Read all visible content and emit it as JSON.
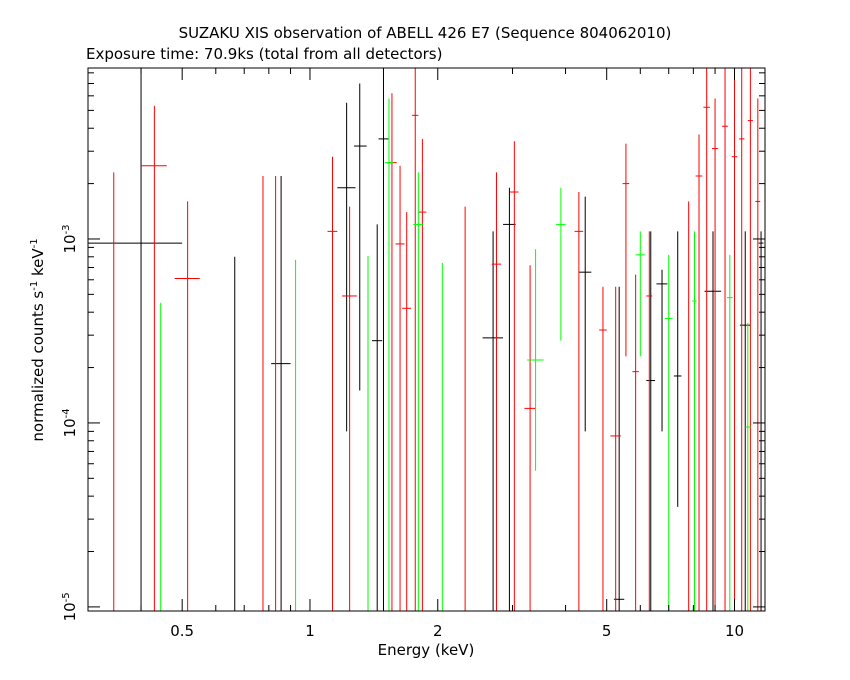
{
  "chart_data": {
    "type": "scatter",
    "title": "SUZAKU XIS observation of ABELL 426 E7 (Sequence 804062010)",
    "subtitle": "Exposure time: 70.9ks (total from all detectors)",
    "xlabel": "Energy (keV)",
    "ylabel_main": "normalized counts s",
    "ylabel_sup1": "-1",
    "ylabel_mid": " keV",
    "ylabel_sup2": "-1",
    "xscale": "log",
    "yscale": "log",
    "xlim": [
      0.3,
      11.8
    ],
    "ylim": [
      9.5e-06,
      0.0085
    ],
    "grid": false,
    "x_ticks": [
      {
        "value": 0.5,
        "label": "0.5"
      },
      {
        "value": 1,
        "label": "1"
      },
      {
        "value": 2,
        "label": "2"
      },
      {
        "value": 5,
        "label": "5"
      },
      {
        "value": 10,
        "label": "10"
      }
    ],
    "y_ticks": [
      {
        "value": 1e-05,
        "base": "10",
        "exp": "-5"
      },
      {
        "value": 0.0001,
        "base": "10",
        "exp": "-4"
      },
      {
        "value": 0.001,
        "base": "10",
        "exp": "-3"
      }
    ],
    "series": [
      {
        "color": "#000000",
        "points": [
          {
            "x": 0.4,
            "xlo": 0.3,
            "xhi": 0.5,
            "y": 0.00095,
            "ylo": 9.5e-06,
            "yhi": 0.0085
          },
          {
            "x": 0.665,
            "xlo": 0.665,
            "xhi": 0.665,
            "y": 0.0008,
            "ylo": 9.5e-06,
            "yhi": 0.0008
          },
          {
            "x": 0.855,
            "xlo": 0.81,
            "xhi": 0.9,
            "y": 0.00021,
            "ylo": 9.5e-06,
            "yhi": 0.0022
          },
          {
            "x": 1.22,
            "xlo": 1.16,
            "xhi": 1.28,
            "y": 0.0019,
            "ylo": 9e-05,
            "yhi": 0.0055
          },
          {
            "x": 1.31,
            "xlo": 1.27,
            "xhi": 1.36,
            "y": 0.0032,
            "ylo": 0.00015,
            "yhi": 0.007
          },
          {
            "x": 1.44,
            "xlo": 1.4,
            "xhi": 1.48,
            "y": 0.00028,
            "ylo": 9.5e-06,
            "yhi": 0.0012
          },
          {
            "x": 1.49,
            "xlo": 1.45,
            "xhi": 1.53,
            "y": 0.0035,
            "ylo": 9.5e-06,
            "yhi": 0.0085
          },
          {
            "x": 2.7,
            "xlo": 2.55,
            "xhi": 2.85,
            "y": 0.00029,
            "ylo": 9.5e-06,
            "yhi": 0.0011
          },
          {
            "x": 2.95,
            "xlo": 2.85,
            "xhi": 3.05,
            "y": 0.0012,
            "ylo": 9.5e-06,
            "yhi": 0.0019
          },
          {
            "x": 4.45,
            "xlo": 4.3,
            "xhi": 4.6,
            "y": 0.00066,
            "ylo": 9e-05,
            "yhi": 0.0017
          },
          {
            "x": 5.35,
            "xlo": 5.2,
            "xhi": 5.5,
            "y": 1.1e-05,
            "ylo": 9.5e-06,
            "yhi": 0.00055
          },
          {
            "x": 6.35,
            "xlo": 6.2,
            "xhi": 6.5,
            "y": 0.00017,
            "ylo": 9.5e-06,
            "yhi": 0.0011
          },
          {
            "x": 6.75,
            "xlo": 6.55,
            "xhi": 6.95,
            "y": 0.00057,
            "ylo": 9e-05,
            "yhi": 0.00068
          },
          {
            "x": 7.35,
            "xlo": 7.2,
            "xhi": 7.5,
            "y": 0.00018,
            "ylo": 3.5e-05,
            "yhi": 0.0011
          },
          {
            "x": 8.9,
            "xlo": 8.5,
            "xhi": 9.3,
            "y": 0.00052,
            "ylo": 9.5e-06,
            "yhi": 0.0011
          },
          {
            "x": 10.6,
            "xlo": 10.3,
            "xhi": 10.9,
            "y": 0.00034,
            "ylo": 9.5e-06,
            "yhi": 0.0011
          },
          {
            "x": 11.55,
            "xlo": 11.4,
            "xhi": 11.7,
            "y": 0.00095,
            "ylo": 9.5e-06,
            "yhi": 0.0011
          }
        ]
      },
      {
        "color": "#ff0000",
        "points": [
          {
            "x": 0.345,
            "xlo": 0.345,
            "xhi": 0.345,
            "y": 0.0023,
            "ylo": 9.5e-06,
            "yhi": 0.0023
          },
          {
            "x": 0.43,
            "xlo": 0.4,
            "xhi": 0.46,
            "y": 0.0025,
            "ylo": 9.5e-06,
            "yhi": 0.0053
          },
          {
            "x": 0.515,
            "xlo": 0.48,
            "xhi": 0.55,
            "y": 0.00061,
            "ylo": 9.5e-06,
            "yhi": 0.0016
          },
          {
            "x": 0.775,
            "xlo": 0.775,
            "xhi": 0.775,
            "y": 0.0022,
            "ylo": 9.5e-06,
            "yhi": 0.0022
          },
          {
            "x": 0.83,
            "xlo": 0.83,
            "xhi": 0.83,
            "y": 0.0022,
            "ylo": 9.5e-06,
            "yhi": 0.0022
          },
          {
            "x": 1.13,
            "xlo": 1.1,
            "xhi": 1.16,
            "y": 0.0011,
            "ylo": 9.5e-06,
            "yhi": 0.0028
          },
          {
            "x": 1.24,
            "xlo": 1.19,
            "xhi": 1.29,
            "y": 0.00049,
            "ylo": 9.5e-06,
            "yhi": 0.0015
          },
          {
            "x": 1.56,
            "xlo": 1.52,
            "xhi": 1.6,
            "y": 0.0026,
            "ylo": 9.5e-06,
            "yhi": 0.0062
          },
          {
            "x": 1.63,
            "xlo": 1.59,
            "xhi": 1.67,
            "y": 0.00094,
            "ylo": 9.5e-06,
            "yhi": 0.0025
          },
          {
            "x": 1.69,
            "xlo": 1.65,
            "xhi": 1.73,
            "y": 0.00042,
            "ylo": 9.5e-06,
            "yhi": 0.0014
          },
          {
            "x": 1.77,
            "xlo": 1.74,
            "xhi": 1.8,
            "y": 0.0047,
            "ylo": 9.5e-06,
            "yhi": 0.0085
          },
          {
            "x": 1.84,
            "xlo": 1.8,
            "xhi": 1.88,
            "y": 0.0014,
            "ylo": 9.5e-06,
            "yhi": 0.0035
          },
          {
            "x": 2.32,
            "xlo": 2.32,
            "xhi": 2.32,
            "y": 0.0015,
            "ylo": 9.5e-06,
            "yhi": 0.0015
          },
          {
            "x": 2.75,
            "xlo": 2.68,
            "xhi": 2.82,
            "y": 0.00073,
            "ylo": 9.5e-06,
            "yhi": 0.0023
          },
          {
            "x": 3.03,
            "xlo": 2.96,
            "xhi": 3.1,
            "y": 0.0018,
            "ylo": 9.5e-06,
            "yhi": 0.0034
          },
          {
            "x": 3.3,
            "xlo": 3.2,
            "xhi": 3.4,
            "y": 0.00012,
            "ylo": 9.5e-06,
            "yhi": 0.00072
          },
          {
            "x": 4.3,
            "xlo": 4.2,
            "xhi": 4.4,
            "y": 0.0011,
            "ylo": 9.5e-06,
            "yhi": 0.0018
          },
          {
            "x": 4.9,
            "xlo": 4.8,
            "xhi": 5.0,
            "y": 0.00032,
            "ylo": 9.5e-06,
            "yhi": 0.00055
          },
          {
            "x": 5.25,
            "xlo": 5.1,
            "xhi": 5.4,
            "y": 8.5e-05,
            "ylo": 9.5e-06,
            "yhi": 0.00055
          },
          {
            "x": 5.55,
            "xlo": 5.45,
            "xhi": 5.65,
            "y": 0.002,
            "ylo": 0.00023,
            "yhi": 0.0033
          },
          {
            "x": 5.85,
            "xlo": 5.75,
            "xhi": 5.95,
            "y": 0.00019,
            "ylo": 9.5e-06,
            "yhi": 0.00064
          },
          {
            "x": 6.3,
            "xlo": 6.2,
            "xhi": 6.4,
            "y": 0.00049,
            "ylo": 9.5e-06,
            "yhi": 0.0011
          },
          {
            "x": 7.8,
            "xlo": 7.8,
            "xhi": 7.8,
            "y": 0.0016,
            "ylo": 9.5e-06,
            "yhi": 0.0016
          },
          {
            "x": 8.25,
            "xlo": 8.1,
            "xhi": 8.4,
            "y": 0.0022,
            "ylo": 9.5e-06,
            "yhi": 0.0037
          },
          {
            "x": 8.6,
            "xlo": 8.45,
            "xhi": 8.75,
            "y": 0.0052,
            "ylo": 9.5e-06,
            "yhi": 0.0085
          },
          {
            "x": 9.0,
            "xlo": 8.85,
            "xhi": 9.15,
            "y": 0.0031,
            "ylo": 9.5e-06,
            "yhi": 0.0058
          },
          {
            "x": 9.5,
            "xlo": 9.35,
            "xhi": 9.65,
            "y": 0.0041,
            "ylo": 9.5e-06,
            "yhi": 0.0085
          },
          {
            "x": 10.0,
            "xlo": 9.85,
            "xhi": 10.15,
            "y": 0.0028,
            "ylo": 9.5e-06,
            "yhi": 0.0085
          },
          {
            "x": 10.4,
            "xlo": 10.25,
            "xhi": 10.55,
            "y": 0.0035,
            "ylo": 9.5e-06,
            "yhi": 0.0085
          },
          {
            "x": 10.9,
            "xlo": 10.75,
            "xhi": 11.05,
            "y": 0.0044,
            "ylo": 9.5e-06,
            "yhi": 0.0085
          },
          {
            "x": 11.35,
            "xlo": 11.2,
            "xhi": 11.5,
            "y": 0.0016,
            "ylo": 9.5e-06,
            "yhi": 0.0058
          }
        ]
      },
      {
        "color": "#00ff00",
        "points": [
          {
            "x": 0.445,
            "xlo": 0.445,
            "xhi": 0.445,
            "y": 0.00045,
            "ylo": 9.5e-06,
            "yhi": 0.00045
          },
          {
            "x": 0.925,
            "xlo": 0.925,
            "xhi": 0.925,
            "y": 0.00077,
            "ylo": 9.5e-06,
            "yhi": 0.00077
          },
          {
            "x": 1.37,
            "xlo": 1.37,
            "xhi": 1.37,
            "y": 0.00081,
            "ylo": 9.5e-06,
            "yhi": 0.00081
          },
          {
            "x": 1.535,
            "xlo": 1.5,
            "xhi": 1.57,
            "y": 0.0026,
            "ylo": 9.5e-06,
            "yhi": 0.0058
          },
          {
            "x": 1.8,
            "xlo": 1.75,
            "xhi": 1.85,
            "y": 0.0012,
            "ylo": 9.5e-06,
            "yhi": 0.0023
          },
          {
            "x": 2.05,
            "xlo": 2.05,
            "xhi": 2.05,
            "y": 0.00074,
            "ylo": 9.5e-06,
            "yhi": 0.00074
          },
          {
            "x": 3.4,
            "xlo": 3.25,
            "xhi": 3.55,
            "y": 0.00022,
            "ylo": 5.5e-05,
            "yhi": 0.00088
          },
          {
            "x": 3.9,
            "xlo": 3.8,
            "xhi": 4.0,
            "y": 0.0012,
            "ylo": 0.00028,
            "yhi": 0.0019
          },
          {
            "x": 6.0,
            "xlo": 5.85,
            "xhi": 6.15,
            "y": 0.00082,
            "ylo": 0.00023,
            "yhi": 0.0011
          },
          {
            "x": 7.0,
            "xlo": 6.85,
            "xhi": 7.15,
            "y": 0.00037,
            "ylo": 9.5e-06,
            "yhi": 0.00082
          },
          {
            "x": 8.05,
            "xlo": 7.95,
            "xhi": 8.15,
            "y": 0.00046,
            "ylo": 9.5e-06,
            "yhi": 0.0011
          },
          {
            "x": 9.75,
            "xlo": 9.6,
            "xhi": 9.9,
            "y": 0.00048,
            "ylo": 9.5e-06,
            "yhi": 0.00082
          },
          {
            "x": 10.75,
            "xlo": 10.6,
            "xhi": 10.9,
            "y": 9.5e-05,
            "ylo": 9.5e-06,
            "yhi": 0.00035
          }
        ]
      }
    ]
  }
}
